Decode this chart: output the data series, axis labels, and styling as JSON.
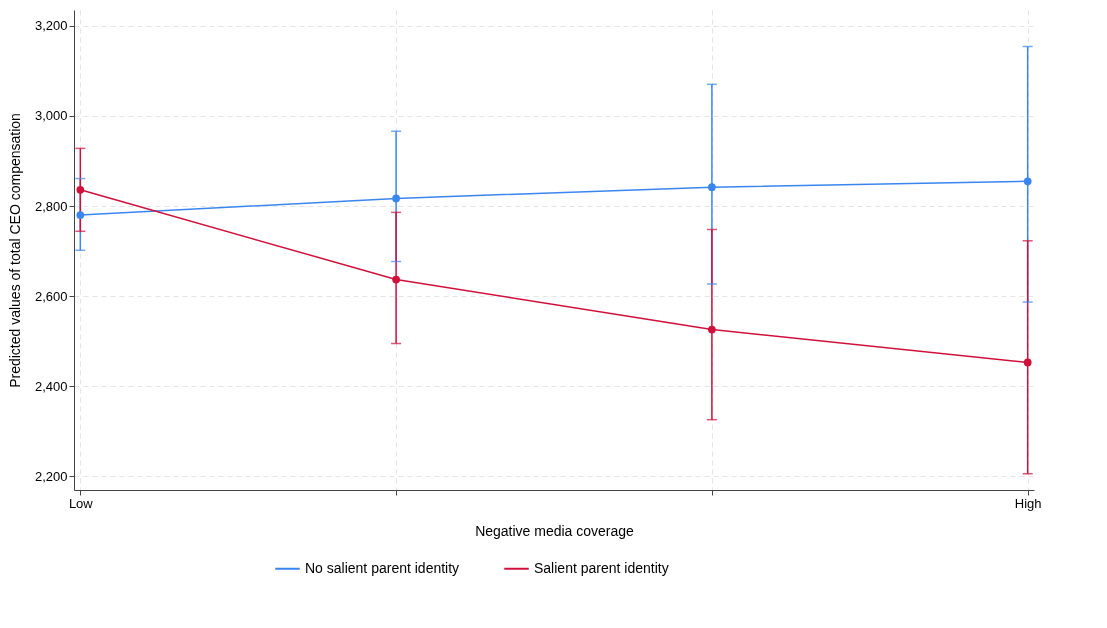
{
  "chart_data": {
    "type": "line",
    "xlabel": "Negative media coverage",
    "ylabel": "Predicted values of total CEO compensation",
    "categories": [
      "Low",
      null,
      null,
      "High"
    ],
    "ylim": [
      2170,
      3235
    ],
    "yticks": [
      {
        "value": 2200,
        "label": "2,200"
      },
      {
        "value": 2400,
        "label": "2,400"
      },
      {
        "value": 2600,
        "label": "2,600"
      },
      {
        "value": 2800,
        "label": "2,800"
      },
      {
        "value": 3000,
        "label": "3,000"
      },
      {
        "value": 3200,
        "label": "3,200"
      }
    ],
    "grid": true,
    "legend": "bottom",
    "marker": "circle",
    "series": [
      {
        "name": "No salient parent identity",
        "color": "#3a86f0",
        "values": [
          2780,
          2817,
          2842,
          2855
        ],
        "errors": [
          [
            2702,
            2861
          ],
          [
            2677,
            2966
          ],
          [
            2627,
            3070
          ],
          [
            2587,
            3154
          ]
        ]
      },
      {
        "name": "Salient parent identity",
        "color": "#d0103a",
        "values": [
          2836,
          2637,
          2526,
          2453
        ],
        "errors": [
          [
            2744,
            2928
          ],
          [
            2495,
            2786
          ],
          [
            2326,
            2748
          ],
          [
            2206,
            2723
          ]
        ]
      }
    ]
  }
}
